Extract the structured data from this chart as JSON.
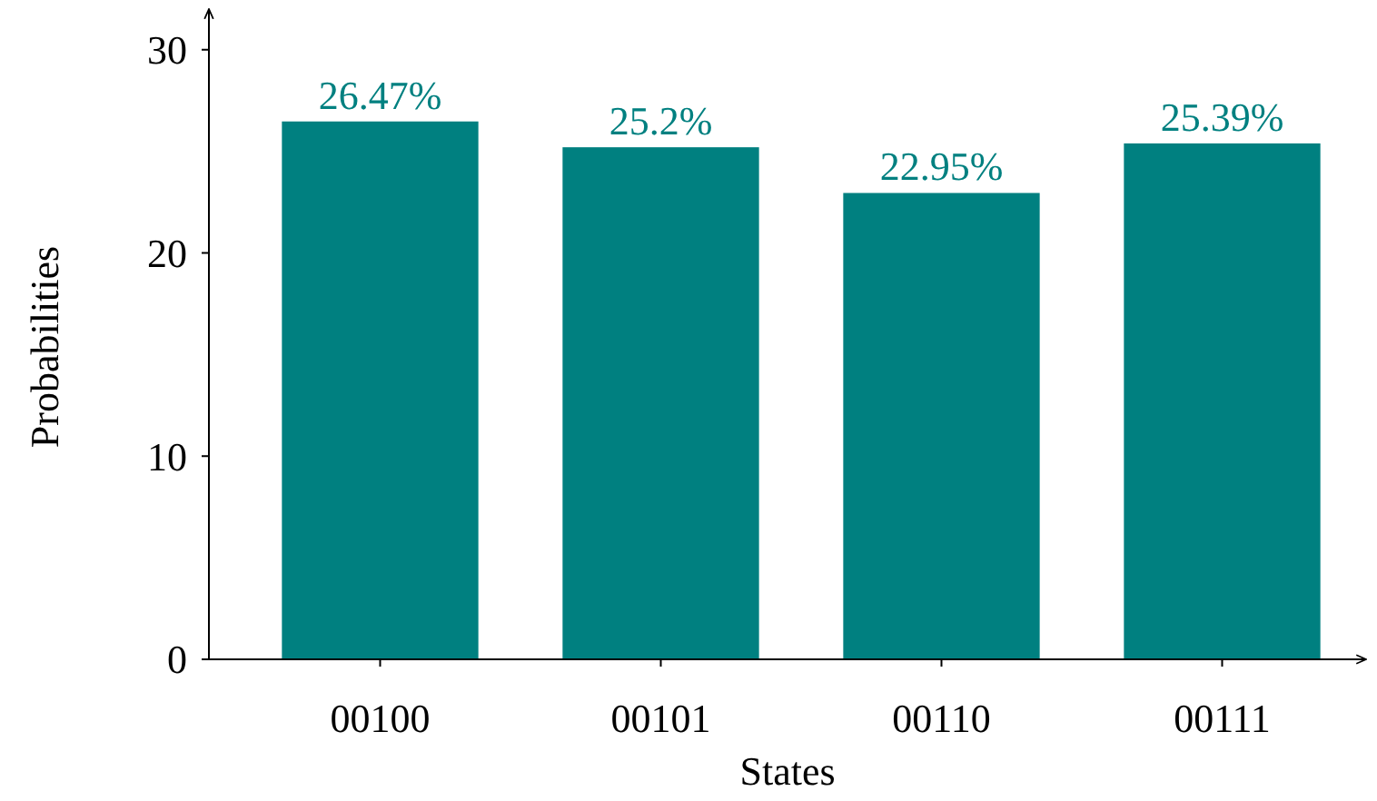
{
  "chart_data": {
    "type": "bar",
    "xlabel": "States",
    "ylabel": "Probabilities",
    "categories": [
      "00100",
      "00101",
      "00110",
      "00111"
    ],
    "values": [
      26.47,
      25.2,
      22.95,
      25.39
    ],
    "value_labels": [
      "26.47%",
      "25.2%",
      "22.95%",
      "25.39%"
    ],
    "color": "#008080",
    "ylim": [
      0,
      32
    ],
    "yticks": [
      0,
      10,
      20,
      30
    ]
  }
}
